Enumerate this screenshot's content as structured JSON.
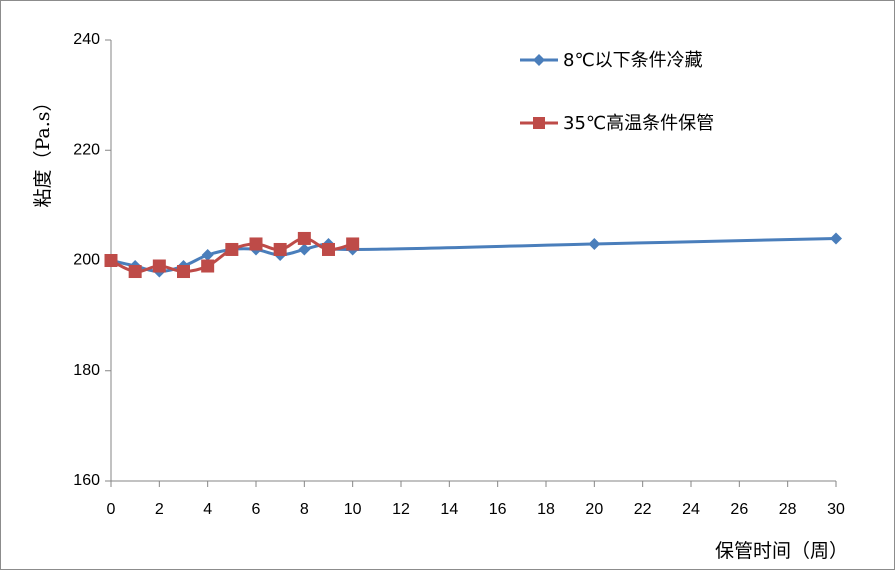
{
  "chart_data": {
    "type": "line",
    "xlabel": "保管时间（周）",
    "ylabel": "粘度（Pa.s）",
    "xlim": [
      0,
      30
    ],
    "ylim": [
      160,
      240
    ],
    "x_ticks": [
      "0",
      "2",
      "4",
      "6",
      "8",
      "10",
      "12",
      "14",
      "16",
      "18",
      "20",
      "22",
      "24",
      "26",
      "28",
      "30"
    ],
    "y_ticks": [
      "160",
      "180",
      "200",
      "220",
      "240"
    ],
    "grid": false,
    "legend_position": "top-right",
    "series": [
      {
        "name": "8℃以下条件冷藏",
        "color": "#4A7EBB",
        "marker": "diamond",
        "x": [
          0,
          1,
          2,
          3,
          4,
          5,
          6,
          7,
          8,
          9,
          10,
          20,
          30
        ],
        "y": [
          200,
          199,
          198,
          199,
          201,
          202,
          202,
          201,
          202,
          203,
          202,
          203,
          204
        ]
      },
      {
        "name": "35℃高温条件保管",
        "color": "#BE4B48",
        "marker": "square",
        "x": [
          0,
          1,
          2,
          3,
          4,
          5,
          6,
          7,
          8,
          9,
          10
        ],
        "y": [
          200,
          198,
          199,
          198,
          199,
          202,
          203,
          202,
          204,
          202,
          203
        ]
      }
    ]
  }
}
